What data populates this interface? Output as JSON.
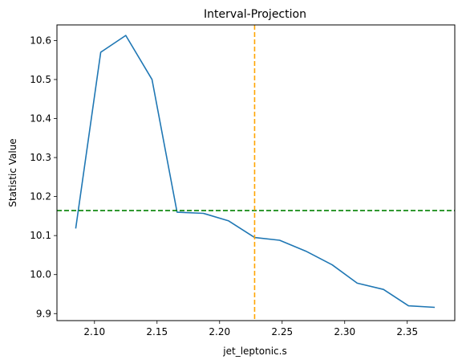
{
  "chart_data": {
    "type": "line",
    "title": "Interval-Projection",
    "xlabel": "jet_leptonic.s",
    "ylabel": "Statistic Value",
    "xlim": [
      2.07,
      2.388
    ],
    "ylim": [
      9.882,
      10.64
    ],
    "xticks": [
      2.1,
      2.15,
      2.2,
      2.25,
      2.3,
      2.35
    ],
    "xtick_labels": [
      "2.10",
      "2.15",
      "2.20",
      "2.25",
      "2.30",
      "2.35"
    ],
    "yticks": [
      9.9,
      10.0,
      10.1,
      10.2,
      10.3,
      10.4,
      10.5,
      10.6
    ],
    "ytick_labels": [
      "9.9",
      "10.0",
      "10.1",
      "10.2",
      "10.3",
      "10.4",
      "10.5",
      "10.6"
    ],
    "grid": false,
    "series": [
      {
        "color": "#1f77b4",
        "x": [
          2.085,
          2.105,
          2.125,
          2.146,
          2.166,
          2.187,
          2.207,
          2.228,
          2.248,
          2.269,
          2.29,
          2.31,
          2.331,
          2.351,
          2.372
        ],
        "y": [
          10.118,
          10.57,
          10.613,
          10.5,
          10.16,
          10.157,
          10.138,
          10.095,
          10.088,
          10.06,
          10.025,
          9.978,
          9.962,
          9.92,
          9.916
        ]
      }
    ],
    "hlines": [
      {
        "y": 10.164,
        "color": "#008000",
        "style": "dashed"
      }
    ],
    "vlines": [
      {
        "x": 2.228,
        "color": "#ffa500",
        "style": "dashed"
      }
    ]
  }
}
